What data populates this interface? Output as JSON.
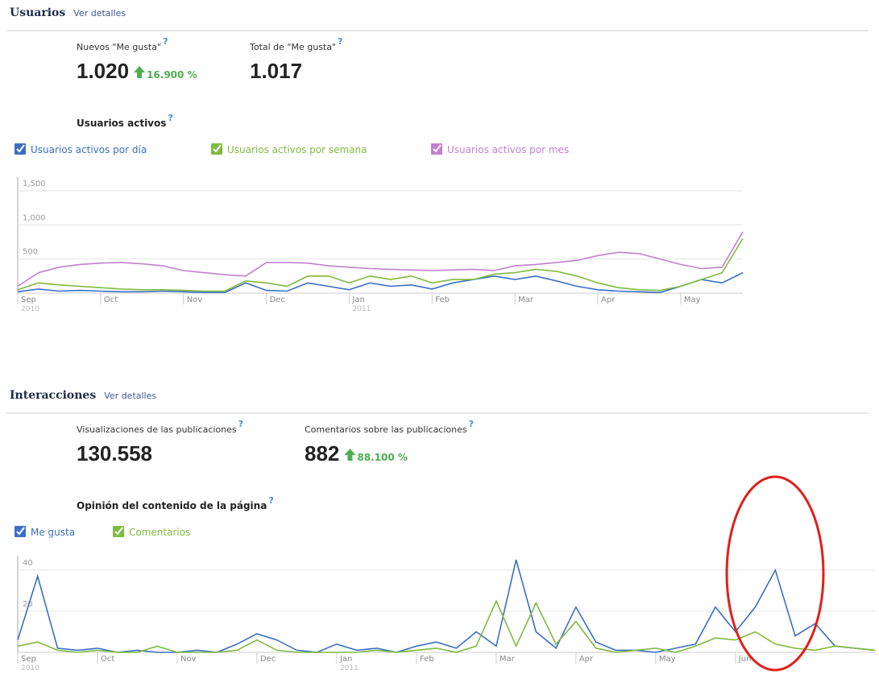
{
  "help_mark": "?",
  "sections": [
    {
      "title": "Usuarios",
      "link": "Ver detalles",
      "metrics": [
        {
          "label": "Nuevos \"Me gusta\"",
          "value": "1.020",
          "change": "16.900 %"
        },
        {
          "label": "Total de \"Me gusta\"",
          "value": "1.017"
        }
      ]
    },
    {
      "title": "Interacciones",
      "link": "Ver detalles",
      "metrics": [
        {
          "label": "Visualizaciones de las publicaciones",
          "value": "130.558"
        },
        {
          "label": "Comentarios sobre las publicaciones",
          "value": "882",
          "change": "88.100 %"
        }
      ]
    }
  ],
  "chart_data": [
    {
      "type": "line",
      "title": "Usuarios activos",
      "categories": [
        "Sep",
        null,
        null,
        null,
        "Oct",
        null,
        null,
        null,
        "Nov",
        null,
        null,
        null,
        "Dec",
        null,
        null,
        null,
        "Jan",
        null,
        null,
        null,
        "Feb",
        null,
        null,
        null,
        "Mar",
        null,
        null,
        null,
        "Apr",
        null,
        null,
        null,
        "May",
        null,
        null,
        null
      ],
      "category_years": [
        "2010",
        null,
        null,
        null,
        null,
        null,
        null,
        null,
        null,
        null,
        null,
        null,
        null,
        null,
        null,
        null,
        "2011",
        null,
        null,
        null,
        null,
        null,
        null,
        null,
        null,
        null,
        null,
        null,
        null,
        null,
        null,
        null,
        null,
        null,
        null,
        null
      ],
      "series": [
        {
          "name": "Usuarios activos por día",
          "color": "#3a6fc4",
          "values": [
            20,
            60,
            30,
            40,
            30,
            20,
            20,
            30,
            20,
            10,
            10,
            150,
            40,
            30,
            150,
            100,
            50,
            150,
            100,
            120,
            60,
            150,
            200,
            250,
            200,
            250,
            180,
            100,
            50,
            30,
            20,
            10,
            100,
            200,
            150,
            300
          ]
        },
        {
          "name": "Usuarios activos por semana",
          "color": "#7fba3f",
          "values": [
            50,
            150,
            120,
            100,
            80,
            60,
            50,
            50,
            40,
            30,
            30,
            180,
            150,
            100,
            250,
            250,
            150,
            250,
            200,
            250,
            150,
            200,
            200,
            280,
            300,
            350,
            320,
            250,
            150,
            80,
            50,
            40,
            100,
            200,
            300,
            800
          ]
        },
        {
          "name": "Usuarios activos por mes",
          "color": "#c27fcf",
          "values": [
            100,
            300,
            380,
            420,
            440,
            450,
            430,
            400,
            330,
            300,
            270,
            250,
            450,
            450,
            440,
            400,
            380,
            360,
            350,
            340,
            330,
            340,
            350,
            330,
            400,
            420,
            450,
            480,
            550,
            600,
            580,
            500,
            420,
            360,
            380,
            900
          ]
        }
      ],
      "ylim": [
        0,
        1700
      ],
      "yticks": [
        500,
        {
          "value": 1000,
          "label": "1,000"
        },
        {
          "value": 1500,
          "label": "1,500"
        }
      ],
      "grid": true
    },
    {
      "type": "line",
      "title": "Opinión del contenido de la página",
      "categories": [
        "Sep",
        null,
        null,
        null,
        "Oct",
        null,
        null,
        null,
        "Nov",
        null,
        null,
        null,
        "Dec",
        null,
        null,
        null,
        "Jan",
        null,
        null,
        null,
        "Feb",
        null,
        null,
        null,
        "Mar",
        null,
        null,
        null,
        "Apr",
        null,
        null,
        null,
        "May",
        null,
        null,
        null,
        "Jun",
        null,
        null,
        null,
        null,
        null,
        null,
        null
      ],
      "category_years": [
        "2010",
        null,
        null,
        null,
        null,
        null,
        null,
        null,
        null,
        null,
        null,
        null,
        null,
        null,
        null,
        null,
        "2011",
        null,
        null,
        null,
        null,
        null,
        null,
        null,
        null,
        null,
        null,
        null,
        null,
        null,
        null,
        null,
        null,
        null,
        null,
        null,
        null,
        null,
        null,
        null,
        null,
        null,
        null,
        null
      ],
      "series": [
        {
          "name": "Me gusta",
          "color": "#3a6fc4",
          "values": [
            6,
            37,
            2,
            1,
            2,
            0,
            1,
            0,
            0,
            1,
            0,
            4,
            9,
            6,
            1,
            0,
            4,
            1,
            2,
            0,
            3,
            5,
            2,
            10,
            3,
            45,
            10,
            2,
            22,
            5,
            1,
            1,
            0,
            2,
            4,
            22,
            10,
            22,
            40,
            8,
            14,
            3,
            2,
            1
          ]
        },
        {
          "name": "Comentarios",
          "color": "#7fba3f",
          "values": [
            3,
            5,
            1,
            0,
            1,
            0,
            0,
            3,
            0,
            0,
            0,
            1,
            6,
            1,
            0,
            0,
            0,
            0,
            1,
            0,
            1,
            2,
            0,
            3,
            25,
            3,
            24,
            4,
            15,
            2,
            0,
            1,
            2,
            0,
            3,
            7,
            6,
            10,
            4,
            2,
            1,
            3,
            2,
            1
          ]
        }
      ],
      "ylim": [
        0,
        47
      ],
      "yticks": [
        20,
        40
      ],
      "grid": true
    }
  ]
}
